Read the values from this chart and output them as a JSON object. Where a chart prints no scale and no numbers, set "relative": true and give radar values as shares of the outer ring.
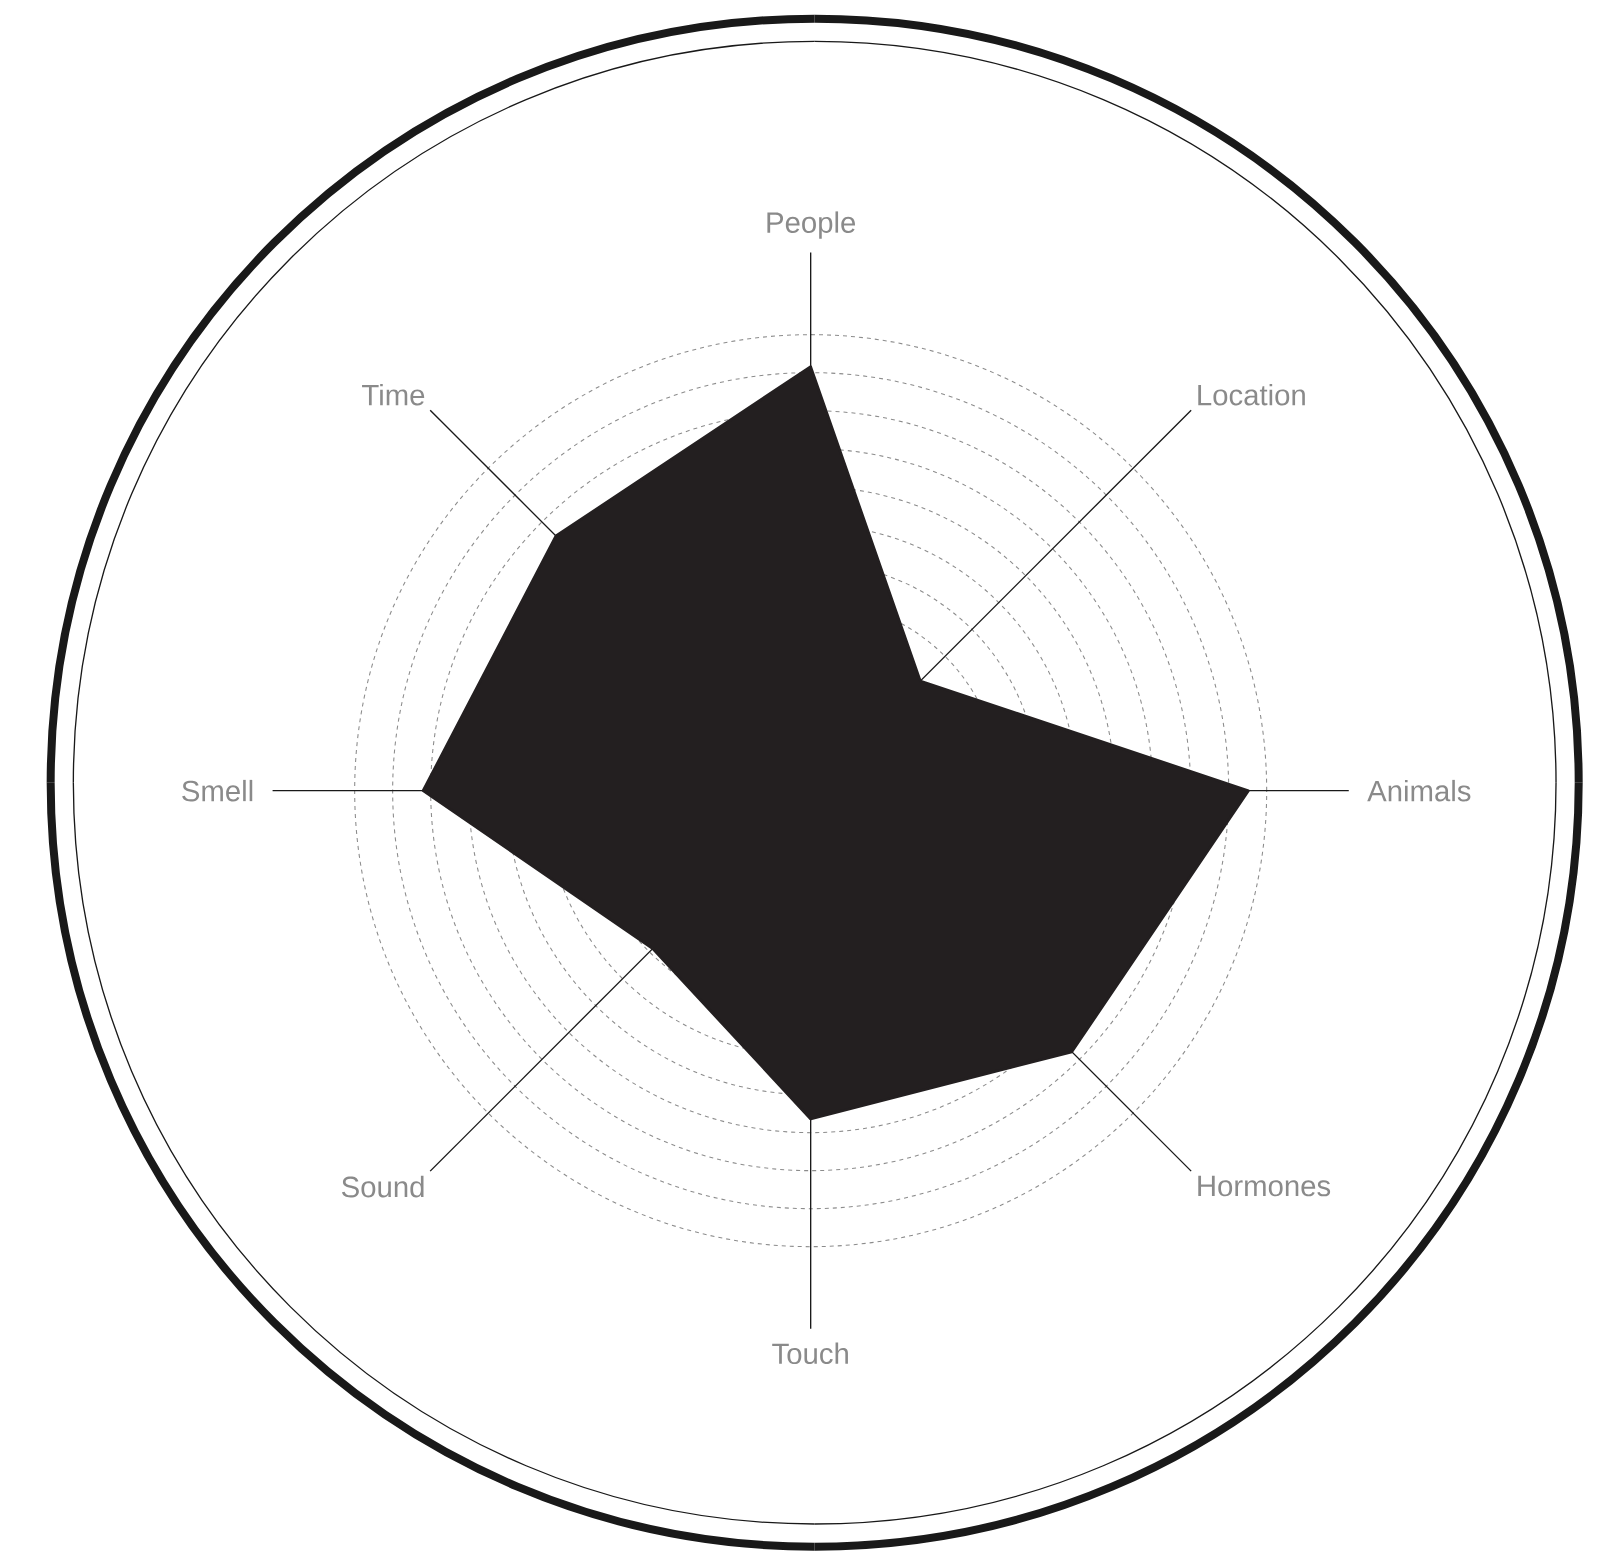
{
  "chart_data": {
    "type": "radar",
    "categories": [
      "People",
      "Location",
      "Animals",
      "Hormones",
      "Touch",
      "Sound",
      "Smell",
      "Time"
    ],
    "relative": true,
    "grid": true,
    "series": [
      {
        "color": "#231f20",
        "values": [
          0.93,
          0.34,
          0.96,
          0.81,
          0.72,
          0.49,
          0.85,
          0.79
        ]
      }
    ]
  }
}
